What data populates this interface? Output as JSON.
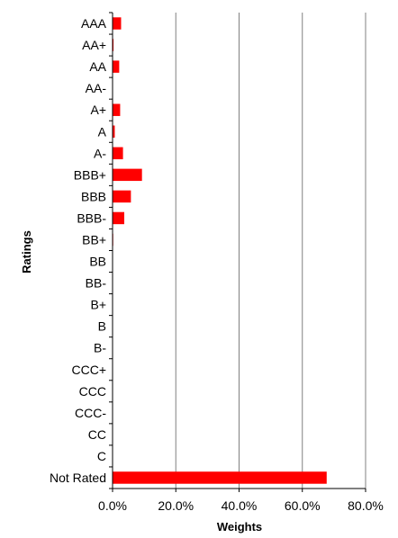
{
  "chart_data": {
    "type": "bar",
    "orientation": "horizontal",
    "categories": [
      "AAA",
      "AA+",
      "AA",
      "AA-",
      "A+",
      "A",
      "A-",
      "BBB+",
      "BBB",
      "BBB-",
      "BB+",
      "BB",
      "BB-",
      "B+",
      "B",
      "B-",
      "CCC+",
      "CCC",
      "CCC-",
      "CC",
      "C",
      "Not Rated"
    ],
    "values": [
      2.7,
      0.3,
      2.1,
      0.0,
      2.4,
      0.7,
      3.3,
      9.3,
      5.8,
      3.7,
      0.2,
      0.0,
      0.0,
      0.0,
      0.0,
      0.0,
      0.0,
      0.0,
      0.0,
      0.0,
      0.0,
      67.7
    ],
    "value_unit": "%",
    "xlabel": "Weights",
    "ylabel": "Ratings",
    "xlim": [
      0,
      80
    ],
    "x_ticks": [
      "0.0%",
      "20.0%",
      "40.0%",
      "60.0%",
      "80.0%"
    ],
    "x_tick_values": [
      0,
      20,
      40,
      60,
      80
    ],
    "grid": "vertical",
    "legend": "none",
    "bar_color": "#ff0000",
    "grid_color": "#808080"
  }
}
